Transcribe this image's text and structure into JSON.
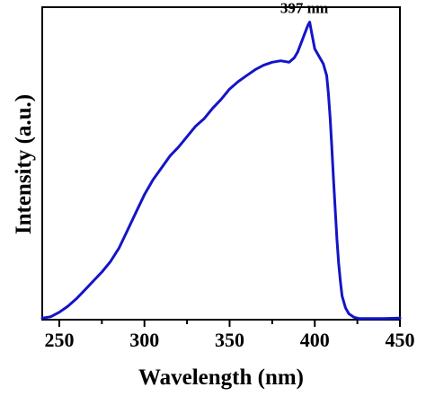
{
  "chart_data": {
    "type": "line",
    "title": "",
    "xlabel": "Wavelength (nm)",
    "ylabel": "Intensity (a.u.)",
    "xlim": [
      240,
      450
    ],
    "ylim": [
      0,
      1.05
    ],
    "x_ticks": [
      250,
      300,
      350,
      400,
      450
    ],
    "x_tick_labels": [
      "250",
      "300",
      "350",
      "400",
      "450"
    ],
    "y_ticks_labeled": false,
    "grid": false,
    "legend": "none",
    "line_color": "#1414c8",
    "annotations": [
      {
        "text": "397 nm",
        "x": 397,
        "y": 1.0
      }
    ],
    "series": [
      {
        "x": [
          240,
          245,
          250,
          255,
          260,
          265,
          270,
          275,
          280,
          285,
          290,
          295,
          300,
          305,
          310,
          315,
          320,
          325,
          330,
          335,
          340,
          345,
          350,
          355,
          360,
          365,
          370,
          375,
          380,
          385,
          388,
          390,
          392,
          394,
          396,
          397,
          398,
          400,
          402,
          405,
          407,
          408,
          409,
          410,
          411,
          412,
          413,
          414,
          415,
          416,
          418,
          420,
          423,
          426,
          430,
          440,
          450
        ],
        "y": [
          0.005,
          0.01,
          0.025,
          0.045,
          0.07,
          0.1,
          0.13,
          0.16,
          0.195,
          0.24,
          0.3,
          0.36,
          0.42,
          0.47,
          0.51,
          0.55,
          0.58,
          0.615,
          0.65,
          0.675,
          0.71,
          0.74,
          0.775,
          0.8,
          0.82,
          0.84,
          0.855,
          0.865,
          0.87,
          0.865,
          0.88,
          0.9,
          0.93,
          0.96,
          0.99,
          1.0,
          0.97,
          0.91,
          0.89,
          0.86,
          0.82,
          0.76,
          0.68,
          0.58,
          0.47,
          0.37,
          0.27,
          0.19,
          0.13,
          0.08,
          0.04,
          0.02,
          0.008,
          0.004,
          0.004,
          0.004,
          0.005
        ]
      }
    ]
  }
}
